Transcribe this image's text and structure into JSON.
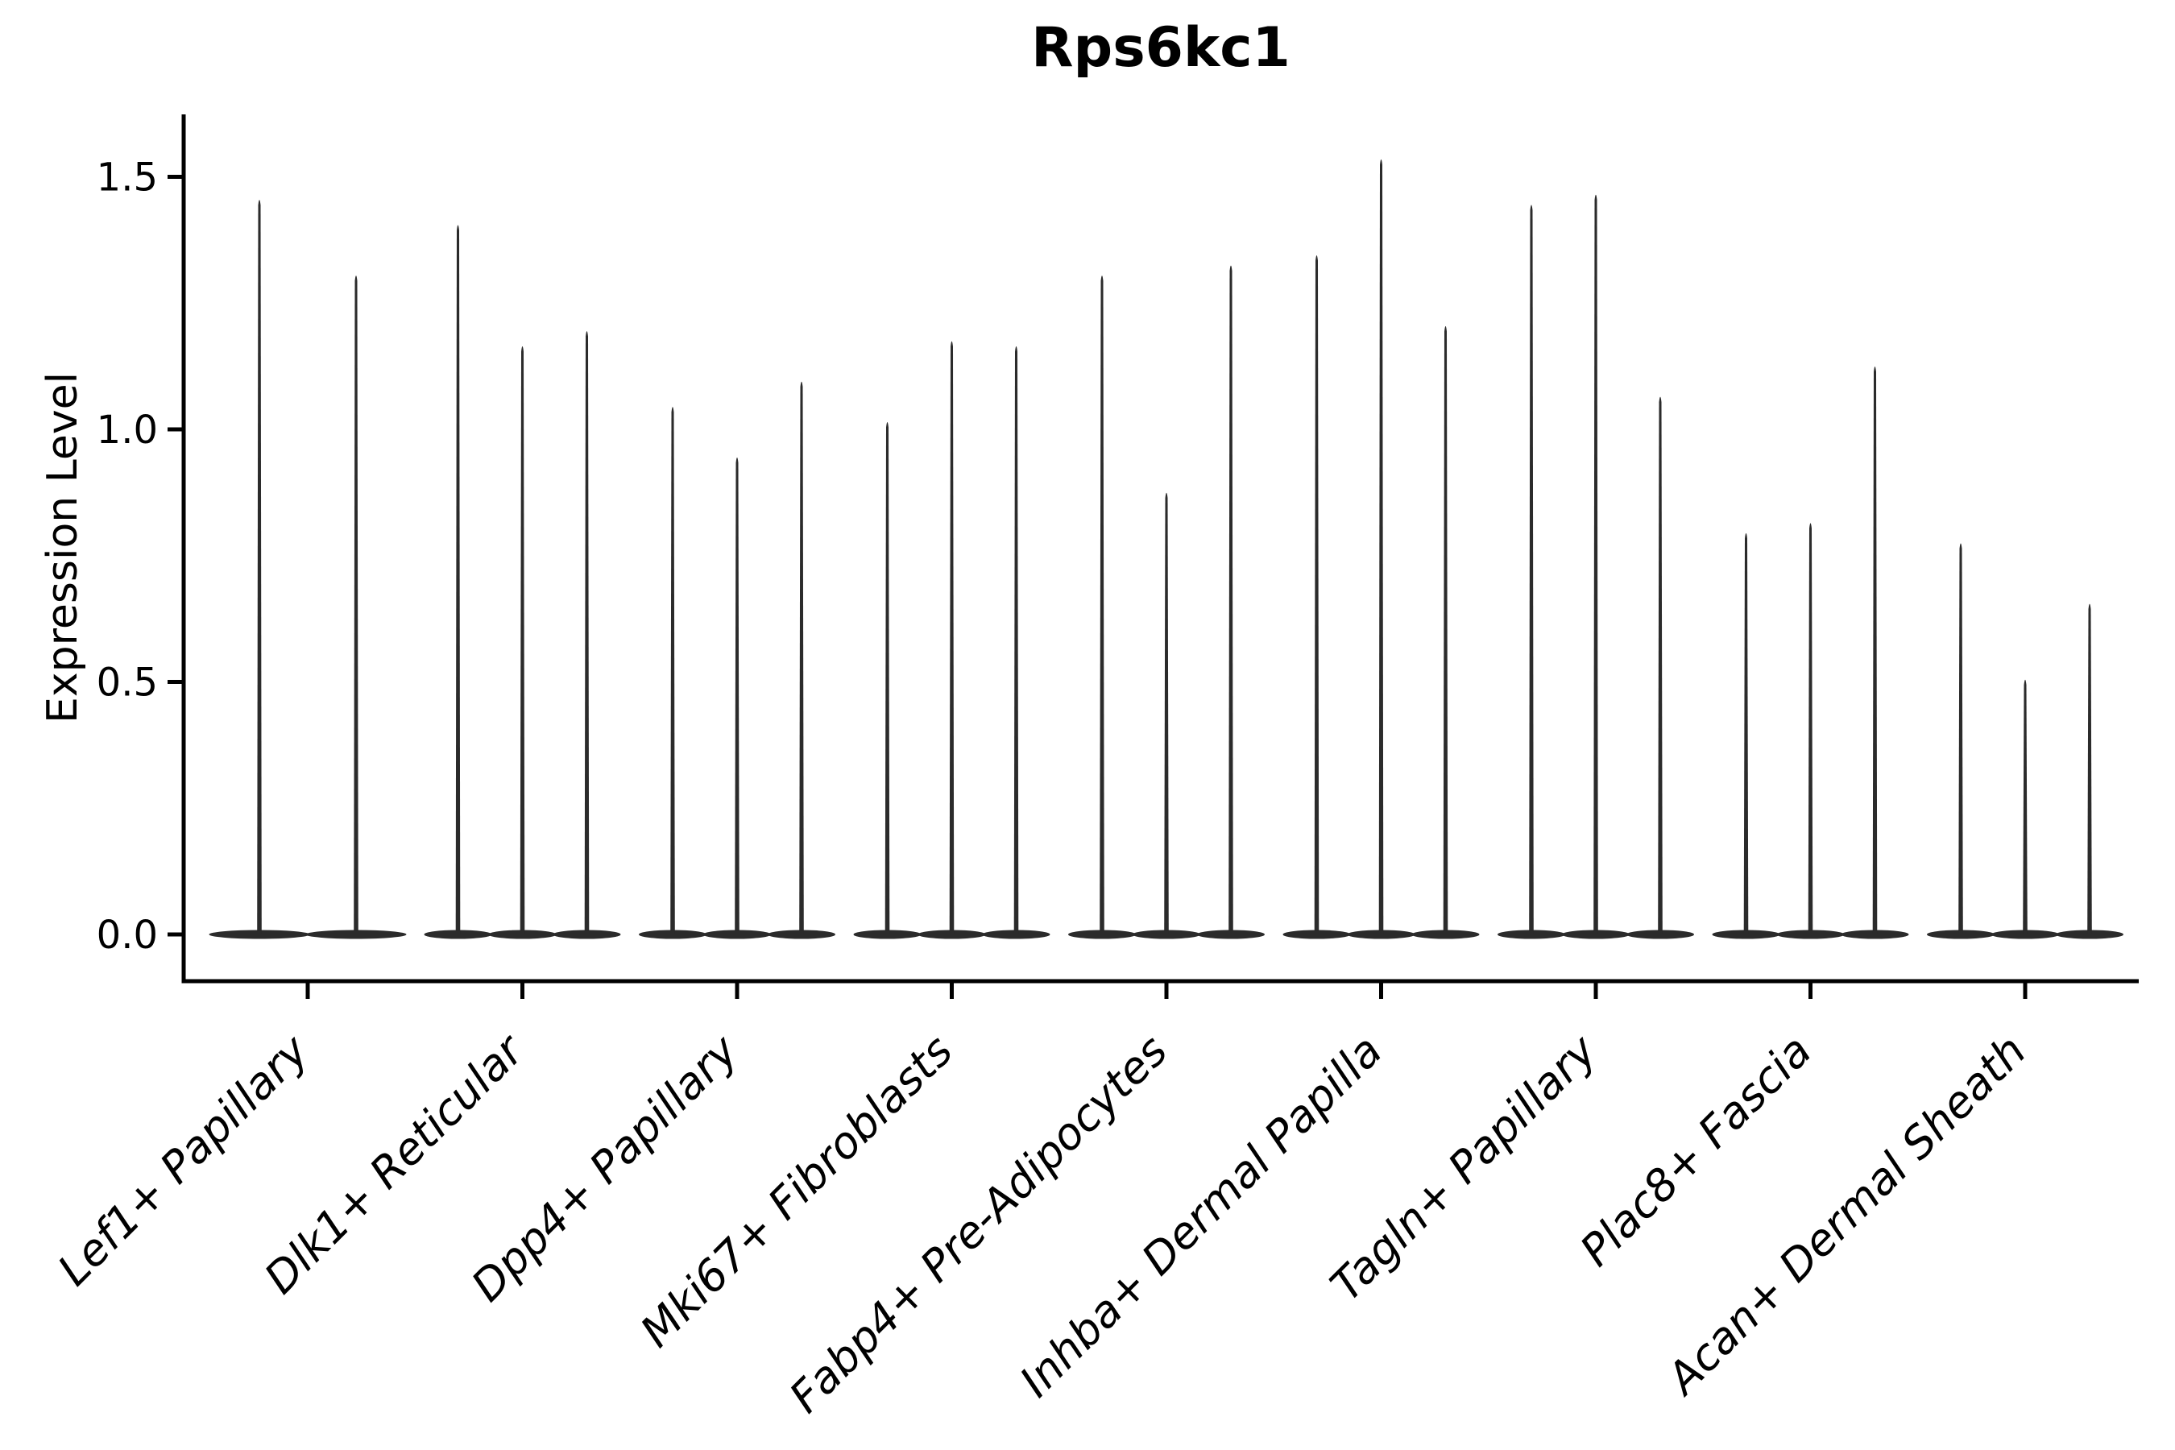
{
  "chart_data": {
    "type": "violin",
    "title": "Rps6kc1",
    "ylabel": "Expression Level",
    "xlabel": "",
    "ytick_labels": [
      "0.0",
      "0.5",
      "1.0",
      "1.5"
    ],
    "ytick_values": [
      0.0,
      0.5,
      1.0,
      1.5
    ],
    "ylim": [
      -0.09,
      1.63
    ],
    "grid": false,
    "legend": null,
    "x_label_rotation_deg": 45,
    "x_label_style": "italic",
    "violin_color": "#2b2b2b",
    "axis_color": "#000000",
    "background": "#ffffff",
    "groups": [
      {
        "label": "Lef1+ Papillary",
        "peaks": [
          1.46,
          1.31
        ]
      },
      {
        "label": "Dlk1+ Reticular",
        "peaks": [
          1.41,
          1.17,
          1.2
        ]
      },
      {
        "label": "Dpp4+ Papillary",
        "peaks": [
          1.05,
          0.95,
          1.1
        ]
      },
      {
        "label": "Mki67+ Fibroblasts",
        "peaks": [
          1.02,
          1.18,
          1.17
        ]
      },
      {
        "label": "Fabp4+ Pre-Adipocytes",
        "peaks": [
          1.31,
          0.88,
          1.33
        ]
      },
      {
        "label": "Inhba+ Dermal Papilla",
        "peaks": [
          1.35,
          1.54,
          1.21
        ]
      },
      {
        "label": "Tagln+ Papillary",
        "peaks": [
          1.45,
          1.47,
          1.07
        ]
      },
      {
        "label": "Plac8+ Fascia",
        "peaks": [
          0.8,
          0.82,
          1.13
        ]
      },
      {
        "label": "Acan+ Dermal Sheath",
        "peaks": [
          0.78,
          0.51,
          0.66
        ]
      }
    ]
  }
}
